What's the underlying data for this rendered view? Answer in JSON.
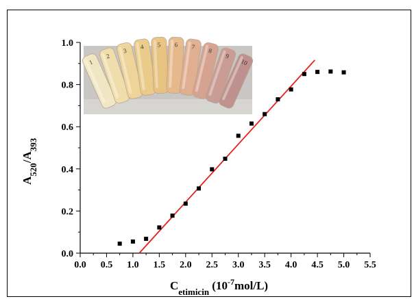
{
  "chart_data": {
    "type": "scatter",
    "title": "",
    "xlabel": {
      "main": "C",
      "sub": "etimicin",
      "open": " (10",
      "sup": "-7",
      "close": "mol/L)"
    },
    "ylabel": {
      "a": "A",
      "a_sub": "520",
      "slash": "/A",
      "b_sub": "393"
    },
    "xlim": [
      0.0,
      5.5
    ],
    "ylim": [
      0.0,
      1.0
    ],
    "x_ticks": [
      "0.0",
      "0.5",
      "1.0",
      "1.5",
      "2.0",
      "2.5",
      "3.0",
      "3.5",
      "4.0",
      "4.5",
      "5.0",
      "5.5"
    ],
    "y_ticks": [
      "0.0",
      "0.2",
      "0.4",
      "0.6",
      "0.8",
      "1.0"
    ],
    "grid": false,
    "series": [
      {
        "marker": "square",
        "color": "#000000",
        "points": [
          [
            0.75,
            0.045
          ],
          [
            1.0,
            0.055
          ],
          [
            1.25,
            0.068
          ],
          [
            1.5,
            0.122
          ],
          [
            1.75,
            0.178
          ],
          [
            2.0,
            0.235
          ],
          [
            2.25,
            0.307
          ],
          [
            2.5,
            0.398
          ],
          [
            2.75,
            0.448
          ],
          [
            3.0,
            0.557
          ],
          [
            3.25,
            0.615
          ],
          [
            3.5,
            0.66
          ],
          [
            3.75,
            0.73
          ],
          [
            4.0,
            0.777
          ],
          [
            4.25,
            0.85
          ],
          [
            4.5,
            0.86
          ],
          [
            4.75,
            0.862
          ],
          [
            5.0,
            0.858
          ]
        ]
      }
    ],
    "fit_line": {
      "color": "#e8201b",
      "x": [
        1.12,
        4.45
      ],
      "y": [
        0.0,
        0.916
      ]
    },
    "inset": {
      "description_colors": [
        "#f4e8c4",
        "#f2dfaa",
        "#f0d596",
        "#eccc86",
        "#e9c27e",
        "#e7b98a",
        "#e2ad8f",
        "#d8a28f",
        "#c99a92",
        "#bf8f8c"
      ],
      "vial_labels": [
        "1",
        "2",
        "3",
        "4",
        "5",
        "6",
        "7",
        "8",
        "9",
        "10"
      ]
    }
  }
}
